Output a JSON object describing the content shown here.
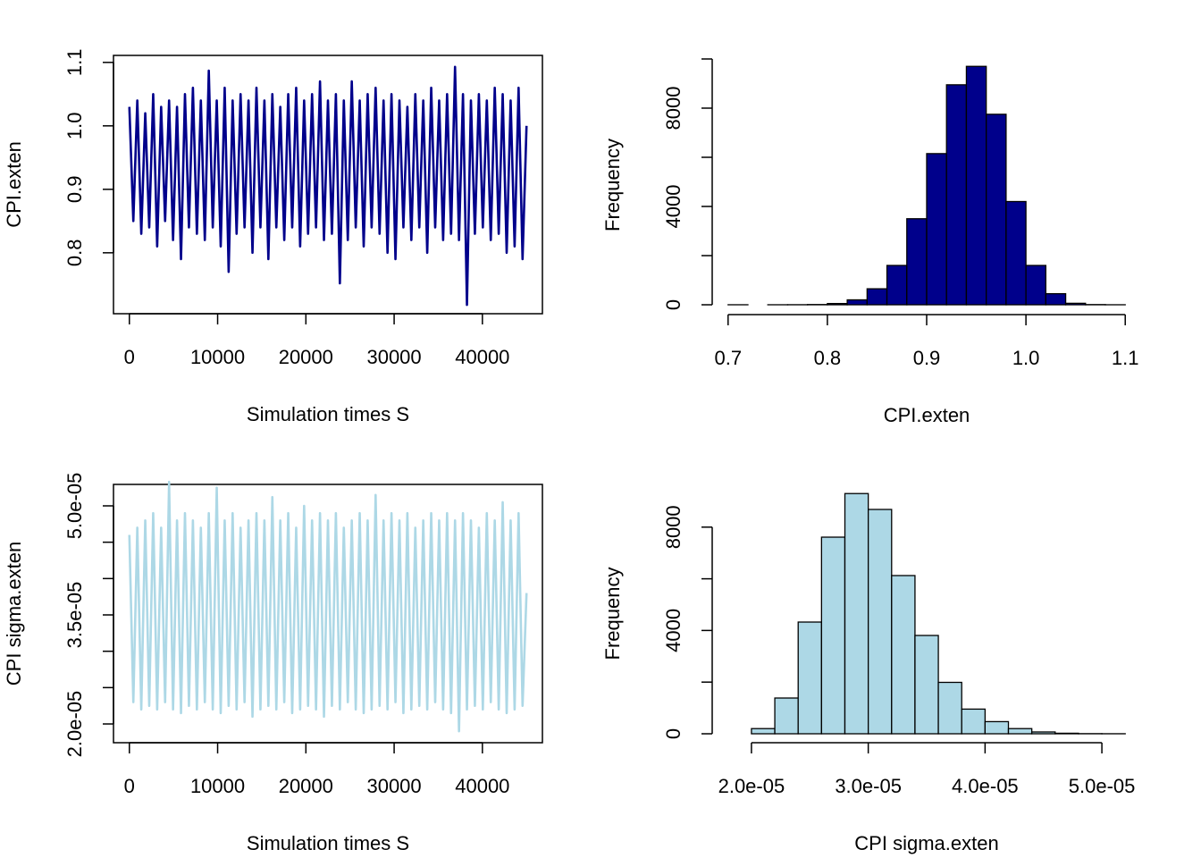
{
  "chart_data": [
    {
      "type": "line",
      "xlabel": "Simulation times S",
      "ylabel": "CPI.exten",
      "color": "#00008b",
      "x": [
        0,
        450,
        900,
        1350,
        1800,
        2250,
        2700,
        3150,
        3600,
        4050,
        4500,
        4950,
        5400,
        5850,
        6300,
        6750,
        7200,
        7650,
        8100,
        8550,
        9000,
        9450,
        9900,
        10350,
        10800,
        11250,
        11700,
        12150,
        12600,
        13050,
        13500,
        13950,
        14400,
        14850,
        15300,
        15750,
        16200,
        16650,
        17100,
        17550,
        18000,
        18450,
        18900,
        19350,
        19800,
        20250,
        20700,
        21150,
        21600,
        22050,
        22500,
        22950,
        23400,
        23850,
        24300,
        24750,
        25200,
        25650,
        26100,
        26550,
        27000,
        27450,
        27900,
        28350,
        28800,
        29250,
        29700,
        30150,
        30600,
        31050,
        31500,
        31950,
        32400,
        32850,
        33300,
        33750,
        34200,
        34650,
        35100,
        35550,
        36000,
        36450,
        36900,
        37350,
        37800,
        38250,
        38700,
        39150,
        39600,
        40050,
        40500,
        40950,
        41400,
        41850,
        42300,
        42750,
        43200,
        43650,
        44100,
        44550,
        45000
      ],
      "values": [
        1.03,
        0.85,
        1.04,
        0.83,
        1.02,
        0.84,
        1.05,
        0.81,
        1.03,
        0.85,
        1.04,
        0.82,
        1.03,
        0.79,
        1.05,
        0.84,
        1.06,
        0.83,
        1.04,
        0.82,
        1.087,
        0.84,
        1.04,
        0.81,
        1.06,
        0.77,
        1.04,
        0.83,
        1.05,
        0.84,
        1.04,
        0.8,
        1.06,
        0.84,
        1.04,
        0.79,
        1.05,
        0.84,
        1.03,
        0.82,
        1.05,
        0.84,
        1.06,
        0.81,
        1.04,
        0.83,
        1.05,
        0.84,
        1.07,
        0.82,
        1.04,
        0.83,
        1.05,
        0.752,
        1.04,
        0.82,
        1.07,
        0.84,
        1.04,
        0.81,
        1.05,
        0.84,
        1.06,
        0.83,
        1.04,
        0.8,
        1.05,
        0.79,
        1.04,
        0.84,
        1.03,
        0.82,
        1.05,
        0.84,
        1.04,
        0.8,
        1.06,
        0.84,
        1.04,
        0.82,
        1.05,
        0.83,
        1.093,
        0.82,
        1.05,
        0.718,
        1.04,
        0.83,
        1.05,
        0.84,
        1.04,
        0.82,
        1.06,
        0.83,
        1.05,
        0.8,
        1.04,
        0.81,
        1.06,
        0.79,
        1.0
      ],
      "xlim": [
        -1799,
        46800
      ],
      "ylim": [
        0.704,
        1.111
      ],
      "xticks": [
        0,
        10000,
        20000,
        30000,
        40000
      ],
      "yticks": [
        0.8,
        0.9,
        {
          "value": 1,
          "label": "1.0"
        },
        1.1
      ]
    },
    {
      "type": "histogram",
      "xlabel": "CPI.exten",
      "ylabel": "Frequency",
      "color": "#00008b",
      "bins": [
        0.7,
        0.72,
        0.74,
        0.76,
        0.78,
        0.8,
        0.82,
        0.84,
        0.86,
        0.88,
        0.9,
        0.92,
        0.94,
        0.96,
        0.98,
        1.0,
        1.02,
        1.04,
        1.06,
        1.08,
        1.1
      ],
      "values": [
        1,
        0,
        1,
        3,
        10,
        50,
        200,
        650,
        1600,
        3500,
        6150,
        8950,
        9700,
        7750,
        4200,
        1600,
        450,
        60,
        8,
        1
      ],
      "xlim": [
        0.684,
        1.116
      ],
      "ylim": [
        -400,
        10145
      ],
      "xticks": [
        0.7,
        0.8,
        0.9,
        {
          "value": 1,
          "label": "1.0"
        },
        1.1
      ],
      "yticks": [
        0,
        {
          "value": 2000,
          "label": null
        },
        4000,
        {
          "value": 6000,
          "label": null
        },
        8000,
        {
          "value": 10000,
          "label": null
        }
      ]
    },
    {
      "type": "line",
      "xlabel": "Simulation times S",
      "ylabel": "CPI sigma.exten",
      "color": "#add8e6",
      "x": [
        0,
        450,
        900,
        1350,
        1800,
        2250,
        2700,
        3150,
        3600,
        4050,
        4500,
        4950,
        5400,
        5850,
        6300,
        6750,
        7200,
        7650,
        8100,
        8550,
        9000,
        9450,
        9900,
        10350,
        10800,
        11250,
        11700,
        12150,
        12600,
        13050,
        13500,
        13950,
        14400,
        14850,
        15300,
        15750,
        16200,
        16650,
        17100,
        17550,
        18000,
        18450,
        18900,
        19350,
        19800,
        20250,
        20700,
        21150,
        21600,
        22050,
        22500,
        22950,
        23400,
        23850,
        24300,
        24750,
        25200,
        25650,
        26100,
        26550,
        27000,
        27450,
        27900,
        28350,
        28800,
        29250,
        29700,
        30150,
        30600,
        31050,
        31500,
        31950,
        32400,
        32850,
        33300,
        33750,
        34200,
        34650,
        35100,
        35550,
        36000,
        36450,
        36900,
        37350,
        37800,
        38250,
        38700,
        39150,
        39600,
        40050,
        40500,
        40950,
        41400,
        41850,
        42300,
        42750,
        43200,
        43650,
        44100,
        44550,
        45000
      ],
      "values": [
        4.6e-05,
        2.3e-05,
        4.7e-05,
        2.2e-05,
        4.8e-05,
        2.25e-05,
        4.9e-05,
        2.2e-05,
        4.7e-05,
        2.3e-05,
        5.33e-05,
        2.2e-05,
        4.8e-05,
        2.15e-05,
        4.9e-05,
        2.25e-05,
        4.8e-05,
        2.2e-05,
        4.7e-05,
        2.3e-05,
        4.9e-05,
        2.2e-05,
        5.25e-05,
        2.15e-05,
        4.8e-05,
        2.25e-05,
        4.9e-05,
        2.2e-05,
        4.7e-05,
        2.3e-05,
        4.8e-05,
        2.1e-05,
        4.9e-05,
        2.2e-05,
        4.8e-05,
        2.25e-05,
        5.12e-05,
        2.2e-05,
        4.8e-05,
        2.3e-05,
        4.9e-05,
        2.15e-05,
        4.7e-05,
        2.2e-05,
        5e-05,
        2.25e-05,
        4.8e-05,
        2.2e-05,
        4.9e-05,
        2.1e-05,
        4.8e-05,
        2.25e-05,
        4.9e-05,
        2.2e-05,
        4.7e-05,
        2.3e-05,
        4.8e-05,
        2.2e-05,
        4.9e-05,
        2.15e-05,
        4.8e-05,
        2.2e-05,
        5.15e-05,
        2.25e-05,
        4.8e-05,
        2.2e-05,
        4.9e-05,
        2.3e-05,
        4.8e-05,
        2.15e-05,
        4.9e-05,
        2.2e-05,
        4.7e-05,
        2.25e-05,
        4.8e-05,
        2.2e-05,
        4.9e-05,
        2.3e-05,
        4.8e-05,
        2.2e-05,
        4.9e-05,
        2.15e-05,
        4.8e-05,
        1.9e-05,
        4.9e-05,
        2.2e-05,
        4.8e-05,
        2.25e-05,
        4.7e-05,
        2.2e-05,
        4.9e-05,
        2.3e-05,
        4.8e-05,
        2.2e-05,
        5.05e-05,
        2.15e-05,
        4.8e-05,
        2.2e-05,
        4.9e-05,
        2.25e-05,
        3.8e-05
      ],
      "xlim": [
        -1799,
        46800
      ],
      "ylim": [
        1.742e-05,
        5.295e-05
      ],
      "xticks": [
        0,
        10000,
        20000,
        30000,
        40000
      ],
      "yticks": [
        {
          "value": 2e-05,
          "label": "2.0e-05"
        },
        {
          "value": 2.5e-05,
          "label": null
        },
        {
          "value": 3e-05,
          "label": null
        },
        {
          "value": 3.5e-05,
          "label": "3.5e-05"
        },
        {
          "value": 4e-05,
          "label": null
        },
        {
          "value": 4.5e-05,
          "label": null
        },
        {
          "value": 5e-05,
          "label": "5.0e-05"
        }
      ]
    },
    {
      "type": "histogram",
      "xlabel": "CPI sigma.exten",
      "ylabel": "Frequency",
      "color": "#add8e6",
      "bins": [
        1.8e-05,
        2e-05,
        2.2e-05,
        2.4e-05,
        2.6e-05,
        2.8e-05,
        3e-05,
        3.2e-05,
        3.4e-05,
        3.6e-05,
        3.8e-05,
        4e-05,
        4.2e-05,
        4.4e-05,
        4.6e-05,
        4.8e-05,
        5e-05,
        5.2e-05
      ],
      "values": [
        0,
        200,
        1384,
        4325,
        7612,
        9300,
        8685,
        6125,
        3806,
        1990,
        955,
        470,
        200,
        70,
        20,
        5,
        2
      ],
      "xlim": [
        1.664e-05,
        5.336e-05
      ],
      "ylim": [
        -346,
        9654
      ],
      "xticks": [
        {
          "value": 2e-05,
          "label": "2.0e-05"
        },
        {
          "value": 3e-05,
          "label": "3.0e-05"
        },
        {
          "value": 4e-05,
          "label": "4.0e-05"
        },
        {
          "value": 5e-05,
          "label": "5.0e-05"
        }
      ],
      "yticks": [
        0,
        {
          "value": 2000,
          "label": null
        },
        4000,
        {
          "value": 6000,
          "label": null
        },
        8000
      ]
    }
  ]
}
